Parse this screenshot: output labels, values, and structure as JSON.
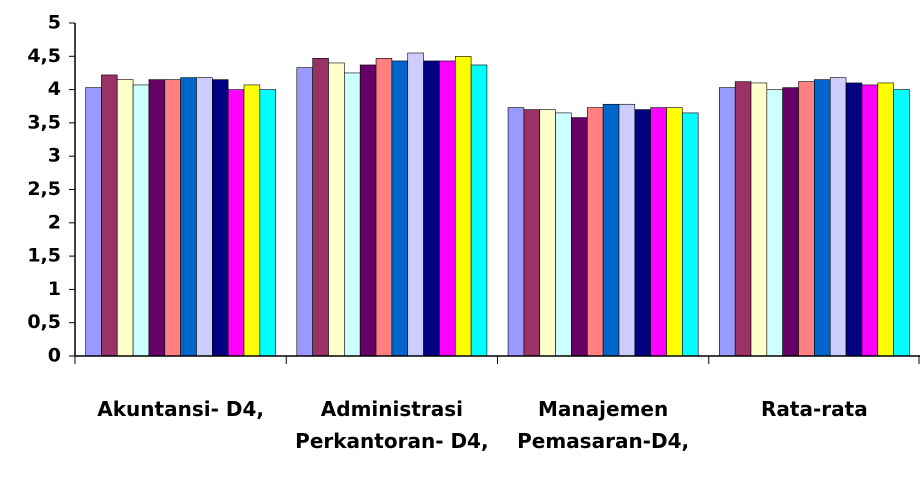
{
  "chart_data": {
    "type": "bar",
    "categories": [
      "Akuntansi- D4,",
      "Administrasi Perkantoran- D4,",
      "Manajemen Pemasaran-D4,",
      "Rata-rata"
    ],
    "series": [
      {
        "color": "#9999ff",
        "values": [
          4.03,
          4.33,
          3.73,
          4.03
        ]
      },
      {
        "color": "#993366",
        "values": [
          4.22,
          4.47,
          3.7,
          4.12
        ]
      },
      {
        "color": "#ffffcc",
        "values": [
          4.15,
          4.4,
          3.7,
          4.1
        ]
      },
      {
        "color": "#ccffff",
        "values": [
          4.07,
          4.25,
          3.65,
          4.0
        ]
      },
      {
        "color": "#660066",
        "values": [
          4.15,
          4.37,
          3.58,
          4.03
        ]
      },
      {
        "color": "#ff8080",
        "values": [
          4.15,
          4.47,
          3.73,
          4.12
        ]
      },
      {
        "color": "#0066cc",
        "values": [
          4.18,
          4.43,
          3.78,
          4.15
        ]
      },
      {
        "color": "#ccccff",
        "values": [
          4.18,
          4.55,
          3.78,
          4.18
        ]
      },
      {
        "color": "#000080",
        "values": [
          4.15,
          4.43,
          3.7,
          4.1
        ]
      },
      {
        "color": "#ff00ff",
        "values": [
          4.0,
          4.43,
          3.73,
          4.07
        ]
      },
      {
        "color": "#ffff00",
        "values": [
          4.07,
          4.5,
          3.73,
          4.1
        ]
      },
      {
        "color": "#00ffff",
        "values": [
          4.0,
          4.37,
          3.65,
          4.0
        ]
      }
    ],
    "ylim": [
      0,
      5
    ],
    "yticks": [
      0,
      {
        "value": 0.5,
        "label": "0,5"
      },
      1,
      {
        "value": 1.5,
        "label": "1,5"
      },
      2,
      {
        "value": 2.5,
        "label": "2,5"
      },
      3,
      {
        "value": 3.5,
        "label": "3,5"
      },
      4,
      {
        "value": 4.5,
        "label": "4,5"
      },
      5
    ],
    "grid": false
  }
}
